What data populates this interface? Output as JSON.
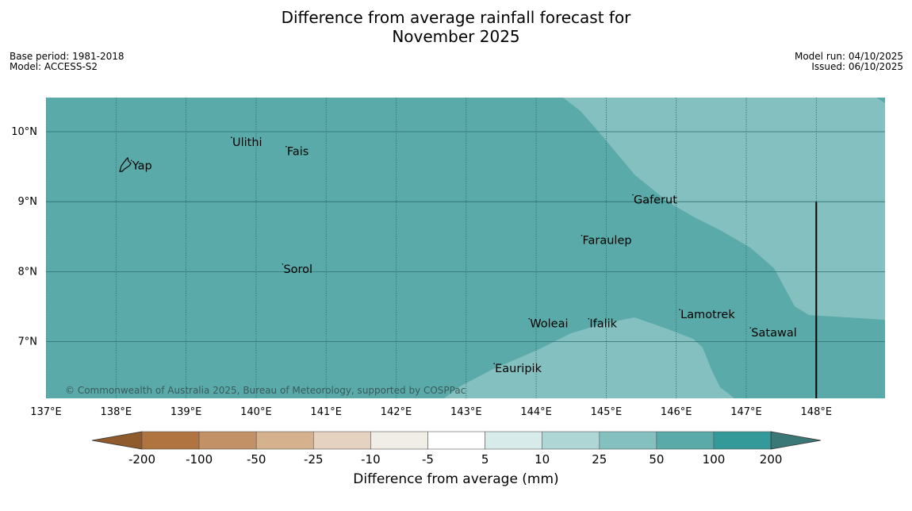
{
  "header": {
    "title_line1": "Difference from average rainfall forecast for",
    "title_line2": "November 2025",
    "base_period": "Base period: 1981-2018",
    "model": "Model: ACCESS-S2",
    "model_run": "Model run: 04/10/2025",
    "issued": "Issued: 06/10/2025"
  },
  "map": {
    "lon_range": [
      137,
      149
    ],
    "lat_range": [
      6.25,
      10.5
    ],
    "lon_ticks": [
      {
        "value": 137,
        "label": "137°E"
      },
      {
        "value": 138,
        "label": "138°E"
      },
      {
        "value": 139,
        "label": "139°E"
      },
      {
        "value": 140,
        "label": "140°E"
      },
      {
        "value": 141,
        "label": "141°E"
      },
      {
        "value": 142,
        "label": "142°E"
      },
      {
        "value": 143,
        "label": "143°E"
      },
      {
        "value": 144,
        "label": "144°E"
      },
      {
        "value": 145,
        "label": "145°E"
      },
      {
        "value": 146,
        "label": "146°E"
      },
      {
        "value": 147,
        "label": "147°E"
      },
      {
        "value": 148,
        "label": "148°E"
      }
    ],
    "lat_ticks": [
      {
        "value": 10,
        "label": "10°N"
      },
      {
        "value": 9,
        "label": "9°N"
      },
      {
        "value": 8,
        "label": "8°N"
      },
      {
        "value": 7,
        "label": "7°N"
      }
    ],
    "places": [
      {
        "name": "Yap",
        "lon": 138.22,
        "lat": 9.52
      },
      {
        "name": "Ulithi",
        "lon": 139.65,
        "lat": 9.85
      },
      {
        "name": "Fais",
        "lon": 140.43,
        "lat": 9.72
      },
      {
        "name": "Gaferut",
        "lon": 145.38,
        "lat": 9.03
      },
      {
        "name": "Faraulep",
        "lon": 144.65,
        "lat": 8.45
      },
      {
        "name": "Sorol",
        "lon": 140.38,
        "lat": 8.04
      },
      {
        "name": "Lamotrek",
        "lon": 146.05,
        "lat": 7.39
      },
      {
        "name": "Woleai",
        "lon": 143.9,
        "lat": 7.26
      },
      {
        "name": "Ifalik",
        "lon": 144.75,
        "lat": 7.26
      },
      {
        "name": "Satawal",
        "lon": 147.06,
        "lat": 7.13
      },
      {
        "name": "Eauripik",
        "lon": 143.4,
        "lat": 6.62
      }
    ],
    "meridian_line_lon": 148,
    "copyright": "© Commonwealth of Australia 2025, Bureau of Meteorology, supported by COSPPac",
    "colors": {
      "base": "#5aaaaa",
      "light": "#84c0bf",
      "grid": "#2d6f6f"
    }
  },
  "colorbar": {
    "title": "Difference from average (mm)",
    "labels": [
      "-200",
      "-100",
      "-50",
      "-25",
      "-10",
      "-5",
      "5",
      "10",
      "25",
      "50",
      "100",
      "200"
    ],
    "colors": [
      "#b07440",
      "#c29166",
      "#d5b18e",
      "#e5d2c0",
      "#f1ede7",
      "#ffffff",
      "#d7ebea",
      "#add6d5",
      "#84c0bf",
      "#5aaaaa",
      "#349a99"
    ],
    "extend_low_color": "#8f5a2c",
    "extend_high_color": "#3a7877"
  }
}
